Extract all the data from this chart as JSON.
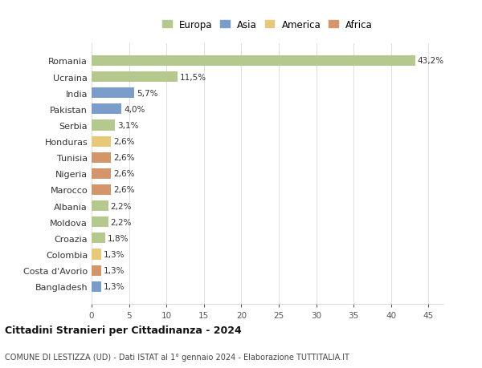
{
  "countries": [
    "Romania",
    "Ucraina",
    "India",
    "Pakistan",
    "Serbia",
    "Honduras",
    "Tunisia",
    "Nigeria",
    "Marocco",
    "Albania",
    "Moldova",
    "Croazia",
    "Colombia",
    "Costa d'Avorio",
    "Bangladesh"
  ],
  "values": [
    43.2,
    11.5,
    5.7,
    4.0,
    3.1,
    2.6,
    2.6,
    2.6,
    2.6,
    2.2,
    2.2,
    1.8,
    1.3,
    1.3,
    1.3
  ],
  "labels": [
    "43,2%",
    "11,5%",
    "5,7%",
    "4,0%",
    "3,1%",
    "2,6%",
    "2,6%",
    "2,6%",
    "2,6%",
    "2,2%",
    "2,2%",
    "1,8%",
    "1,3%",
    "1,3%",
    "1,3%"
  ],
  "colors": [
    "#b5c98e",
    "#b5c98e",
    "#7b9dc9",
    "#7b9dc9",
    "#b5c98e",
    "#e8c97a",
    "#d4956a",
    "#d4956a",
    "#d4956a",
    "#b5c98e",
    "#b5c98e",
    "#b5c98e",
    "#e8c97a",
    "#d4956a",
    "#7b9dc9"
  ],
  "legend_labels": [
    "Europa",
    "Asia",
    "America",
    "Africa"
  ],
  "legend_colors": [
    "#b5c98e",
    "#7b9dc9",
    "#e8c97a",
    "#d4956a"
  ],
  "title": "Cittadini Stranieri per Cittadinanza - 2024",
  "subtitle": "COMUNE DI LESTIZZA (UD) - Dati ISTAT al 1° gennaio 2024 - Elaborazione TUTTITALIA.IT",
  "xlim": [
    0,
    47
  ],
  "xticks": [
    0,
    5,
    10,
    15,
    20,
    25,
    30,
    35,
    40,
    45
  ],
  "bg_color": "#ffffff",
  "grid_color": "#e0e0e0",
  "bar_height": 0.65
}
